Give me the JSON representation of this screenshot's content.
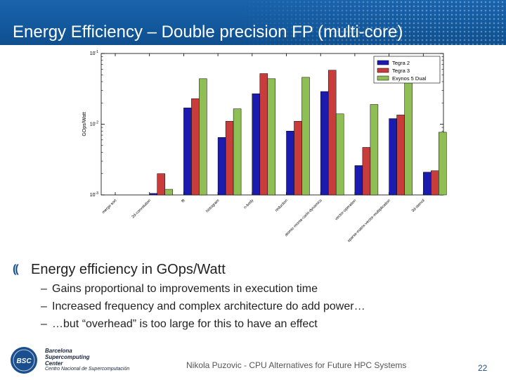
{
  "slide": {
    "title": "Energy Efficiency – Double precision FP (multi-core)",
    "bullets": [
      {
        "level": 1,
        "marker": "((",
        "text": "Energy efficiency in GOps/Watt"
      },
      {
        "level": 2,
        "marker": "–",
        "text": "Gains proportional to improvements in execution time"
      },
      {
        "level": 2,
        "marker": "–",
        "text": "Increased frequency and complex architecture do add power…"
      },
      {
        "level": 2,
        "marker": "–",
        "text": "…but “overhead” is too large for this to have an effect"
      }
    ],
    "footer": "Nikola Puzovic - CPU Alternatives for Future HPC Systems",
    "page_number": "22",
    "logo": {
      "badge": "BSC",
      "lines": [
        "Barcelona",
        "Supercomputing",
        "Center"
      ],
      "subtitle": "Centro Nacional de Supercomputación"
    },
    "colors": {
      "header": "#135a9f",
      "logo": "#1a4f8f"
    }
  },
  "chart_data": {
    "type": "bar",
    "title": "",
    "xlabel": "",
    "ylabel": "GOps/Watt",
    "yscale": "log",
    "ylim": [
      0.001,
      0.1
    ],
    "yticks": [
      {
        "value": 0.001,
        "base": "10",
        "exp": "-3"
      },
      {
        "value": 0.01,
        "base": "10",
        "exp": "-2"
      },
      {
        "value": 0.1,
        "base": "10",
        "exp": "-1"
      }
    ],
    "legend_position": "top-right",
    "grid": false,
    "categories": [
      "merge-sort",
      "2d-convolution",
      "fft",
      "histogram",
      "n-body",
      "reduction",
      "atomic-monte-carlo-dynamics",
      "vector-operation",
      "sparse-matrix-vector-multiplication",
      "3d-stencil"
    ],
    "series": [
      {
        "name": "Tegra 2",
        "color": "#1b1bb0",
        "values": [
          null,
          0.00105,
          0.017,
          0.0065,
          0.027,
          0.008,
          0.029,
          0.0026,
          0.012,
          0.0021
        ]
      },
      {
        "name": "Tegra 3",
        "color": "#c83c3c",
        "values": [
          null,
          0.002,
          0.023,
          0.011,
          0.052,
          0.011,
          0.058,
          0.0047,
          0.0135,
          0.0022
        ]
      },
      {
        "name": "Exynos 5 Dual",
        "color": "#8fbf54",
        "values": [
          null,
          0.0012,
          0.044,
          0.0165,
          0.044,
          0.046,
          0.014,
          0.019,
          0.046,
          0.0077
        ]
      }
    ]
  }
}
